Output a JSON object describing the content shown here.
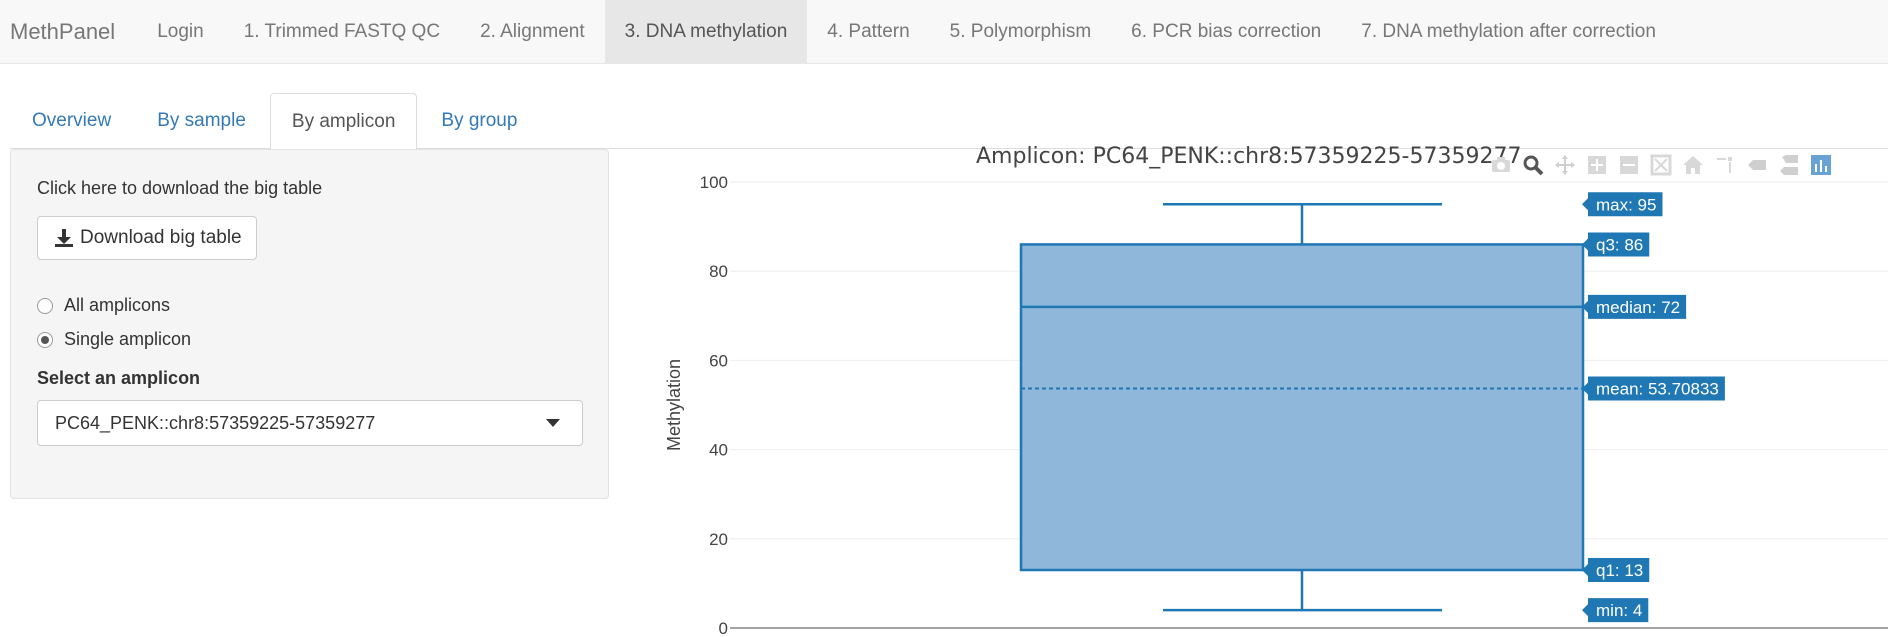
{
  "navbar": {
    "brand": "MethPanel",
    "items": [
      {
        "label": "Login"
      },
      {
        "label": "1. Trimmed FASTQ QC"
      },
      {
        "label": "2. Alignment"
      },
      {
        "label": "3. DNA methylation"
      },
      {
        "label": "4. Pattern"
      },
      {
        "label": "5. Polymorphism"
      },
      {
        "label": "6. PCR bias correction"
      },
      {
        "label": "7. DNA methylation after correction"
      }
    ],
    "active_index": 3
  },
  "tabs": {
    "items": [
      {
        "label": "Overview"
      },
      {
        "label": "By sample"
      },
      {
        "label": "By amplicon"
      },
      {
        "label": "By group"
      }
    ],
    "active_index": 2
  },
  "sidebar": {
    "download_text": "Click here to download the big table",
    "download_button": "Download big table",
    "radio_all": "All amplicons",
    "radio_single": "Single amplicon",
    "selected_radio": "single",
    "select_label": "Select an amplicon",
    "select_value": "PC64_PENK::chr8:57359225-57359277"
  },
  "plot": {
    "modebar_icons": [
      "camera-icon",
      "zoom-icon",
      "pan-icon",
      "zoom-in-icon",
      "zoom-out-icon",
      "autoscale-icon",
      "reset-axes-icon",
      "spike-lines-icon",
      "hover-closest-icon",
      "hover-compare-icon",
      "plotly-logo-icon"
    ]
  },
  "chart_data": {
    "type": "box",
    "title": "Amplicon: PC64_PENK::chr8:57359225-57359277",
    "xlabel": "",
    "ylabel": "Methylation",
    "ylim": [
      0,
      100
    ],
    "yticks": [
      0,
      20,
      40,
      60,
      80,
      100
    ],
    "grid": true,
    "box": {
      "min": 4,
      "q1": 13,
      "median": 72,
      "mean": 53.70833,
      "q3": 86,
      "max": 95
    },
    "hover_labels": [
      {
        "key": "max",
        "text": "max: 95"
      },
      {
        "key": "q3",
        "text": "q3: 86"
      },
      {
        "key": "median",
        "text": "median: 72"
      },
      {
        "key": "mean",
        "text": "mean: 53.70833"
      },
      {
        "key": "q1",
        "text": "q1: 13"
      },
      {
        "key": "min",
        "text": "min: 4"
      }
    ],
    "colors": {
      "box_fill": "#8fb7da",
      "box_line": "#1f77b4",
      "label_bg": "#1f77b4",
      "label_text": "#ffffff"
    }
  }
}
